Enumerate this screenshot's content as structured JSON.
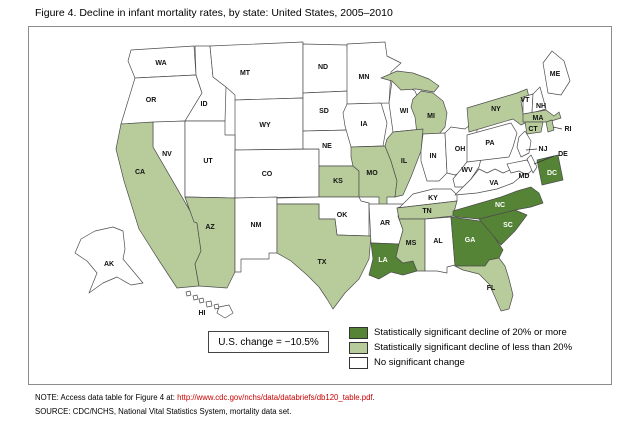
{
  "figure": {
    "title": "Figure 4. Decline in infant mortality rates, by state: United States, 2005–2010"
  },
  "annotation": {
    "us_change_label": "U.S. change = −10.5%"
  },
  "legend": {
    "colors": {
      "ge20": "#558436",
      "lt20": "#b7cc9a",
      "none": "#ffffff"
    },
    "items": [
      {
        "key": "ge20",
        "color": "#558436",
        "label": "Statistically significant decline of 20% or more"
      },
      {
        "key": "lt20",
        "color": "#b7cc9a",
        "label": "Statistically significant decline of less than 20%"
      },
      {
        "key": "none",
        "color": "#ffffff",
        "label": "No significant change"
      }
    ]
  },
  "notes": {
    "note_prefix": "NOTE: Access data table for Figure 4 at: ",
    "note_link": "http://www.cdc.gov/nchs/data/databriefs/db120_table.pdf",
    "note_suffix": ".",
    "source": "SOURCE: CDC/NCHS, National Vital Statistics System, mortality data set."
  },
  "map": {
    "stroke_color": "#4d4d4d",
    "label_color_dark_states": "#ffffff",
    "label_color_default": "#111111",
    "states": [
      {
        "id": "WA",
        "label": "WA",
        "category": "none"
      },
      {
        "id": "OR",
        "label": "OR",
        "category": "none"
      },
      {
        "id": "CA",
        "label": "CA",
        "category": "lt20"
      },
      {
        "id": "NV",
        "label": "NV",
        "category": "none"
      },
      {
        "id": "ID",
        "label": "ID",
        "category": "none"
      },
      {
        "id": "MT",
        "label": "MT",
        "category": "none"
      },
      {
        "id": "WY",
        "label": "WY",
        "category": "none"
      },
      {
        "id": "UT",
        "label": "UT",
        "category": "none"
      },
      {
        "id": "CO",
        "label": "CO",
        "category": "none"
      },
      {
        "id": "AZ",
        "label": "AZ",
        "category": "lt20"
      },
      {
        "id": "NM",
        "label": "NM",
        "category": "none"
      },
      {
        "id": "ND",
        "label": "ND",
        "category": "none"
      },
      {
        "id": "SD",
        "label": "SD",
        "category": "none"
      },
      {
        "id": "NE",
        "label": "NE",
        "category": "none"
      },
      {
        "id": "KS",
        "label": "KS",
        "category": "lt20"
      },
      {
        "id": "OK",
        "label": "OK",
        "category": "none"
      },
      {
        "id": "TX",
        "label": "TX",
        "category": "lt20"
      },
      {
        "id": "MN",
        "label": "MN",
        "category": "none"
      },
      {
        "id": "IA",
        "label": "IA",
        "category": "none"
      },
      {
        "id": "MO",
        "label": "MO",
        "category": "lt20"
      },
      {
        "id": "AR",
        "label": "AR",
        "category": "none"
      },
      {
        "id": "LA",
        "label": "LA",
        "category": "ge20"
      },
      {
        "id": "WI",
        "label": "WI",
        "category": "none"
      },
      {
        "id": "IL",
        "label": "IL",
        "category": "lt20"
      },
      {
        "id": "MI",
        "label": "MI",
        "category": "lt20"
      },
      {
        "id": "IN",
        "label": "IN",
        "category": "none"
      },
      {
        "id": "OH",
        "label": "OH",
        "category": "none"
      },
      {
        "id": "KY",
        "label": "KY",
        "category": "none"
      },
      {
        "id": "TN",
        "label": "TN",
        "category": "lt20"
      },
      {
        "id": "MS",
        "label": "MS",
        "category": "lt20"
      },
      {
        "id": "AL",
        "label": "AL",
        "category": "none"
      },
      {
        "id": "GA",
        "label": "GA",
        "category": "ge20"
      },
      {
        "id": "FL",
        "label": "FL",
        "category": "lt20"
      },
      {
        "id": "SC",
        "label": "SC",
        "category": "ge20"
      },
      {
        "id": "NC",
        "label": "NC",
        "category": "ge20"
      },
      {
        "id": "VA",
        "label": "VA",
        "category": "none"
      },
      {
        "id": "WV",
        "label": "WV",
        "category": "none"
      },
      {
        "id": "PA",
        "label": "PA",
        "category": "none"
      },
      {
        "id": "NY",
        "label": "NY",
        "category": "lt20"
      },
      {
        "id": "NJ",
        "label": "NJ",
        "category": "none"
      },
      {
        "id": "DE",
        "label": "DE",
        "category": "none"
      },
      {
        "id": "MD",
        "label": "MD",
        "category": "none"
      },
      {
        "id": "DC",
        "label": "DC",
        "category": "ge20"
      },
      {
        "id": "VT",
        "label": "VT",
        "category": "none"
      },
      {
        "id": "NH",
        "label": "NH",
        "category": "none"
      },
      {
        "id": "MA",
        "label": "MA",
        "category": "lt20"
      },
      {
        "id": "CT",
        "label": "CT",
        "category": "lt20"
      },
      {
        "id": "RI",
        "label": "RI",
        "category": "lt20"
      },
      {
        "id": "ME",
        "label": "ME",
        "category": "none"
      },
      {
        "id": "AK",
        "label": "AK",
        "category": "none"
      },
      {
        "id": "HI",
        "label": "HI",
        "category": "none"
      }
    ]
  }
}
